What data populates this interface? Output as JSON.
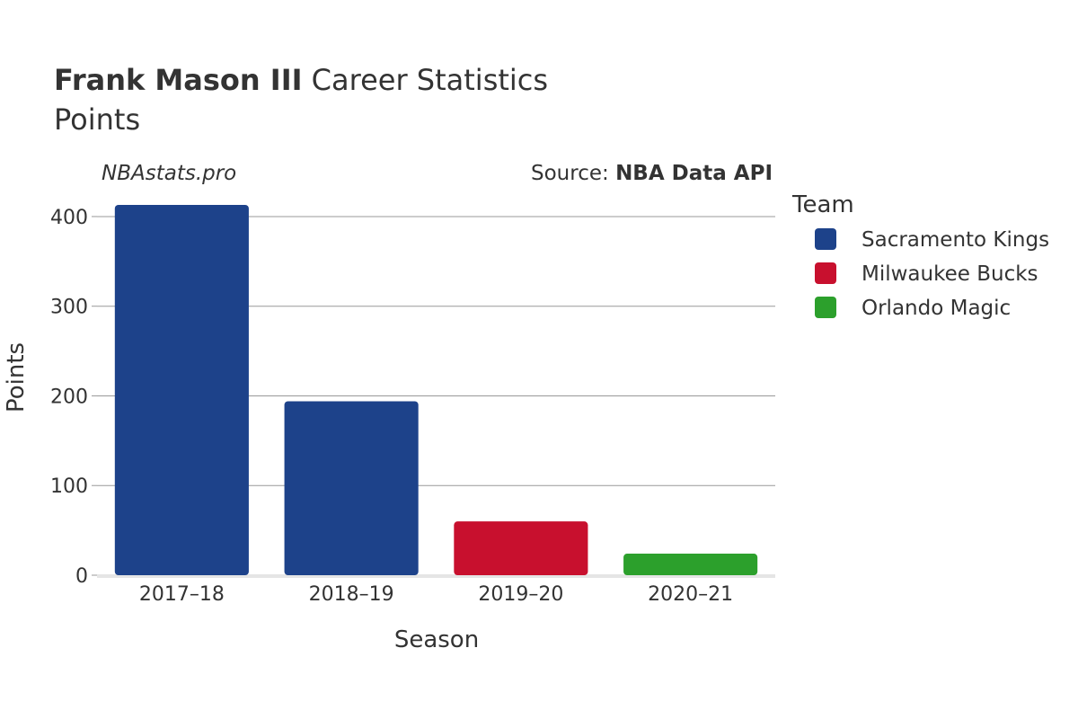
{
  "header": {
    "title_bold": "Frank Mason III",
    "title_rest": " Career Statistics",
    "subtitle": "Points"
  },
  "watermark": "NBAstats.pro",
  "source": {
    "prefix": "Source: ",
    "name": "NBA Data API"
  },
  "legend": {
    "title": "Team"
  },
  "colors": {
    "Sacramento Kings": "#1d428a",
    "Milwaukee Bucks": "#c8102e",
    "Orlando Magic": "#2ca02c",
    "grid": "#999999",
    "baseline": "#e5e5e5"
  },
  "chart_data": {
    "type": "bar",
    "title": "Frank Mason III Career Statistics",
    "subtitle": "Points",
    "xlabel": "Season",
    "ylabel": "Points",
    "categories": [
      "2017–18",
      "2018–19",
      "2019–20",
      "2020–21"
    ],
    "values": [
      413,
      194,
      60,
      24
    ],
    "teams": [
      "Sacramento Kings",
      "Sacramento Kings",
      "Milwaukee Bucks",
      "Orlando Magic"
    ],
    "series": [
      {
        "name": "Sacramento Kings"
      },
      {
        "name": "Milwaukee Bucks"
      },
      {
        "name": "Orlando Magic"
      }
    ],
    "ylim": [
      0,
      420
    ],
    "yticks": [
      0,
      100,
      200,
      300,
      400
    ],
    "grid": true,
    "legend_position": "right"
  }
}
